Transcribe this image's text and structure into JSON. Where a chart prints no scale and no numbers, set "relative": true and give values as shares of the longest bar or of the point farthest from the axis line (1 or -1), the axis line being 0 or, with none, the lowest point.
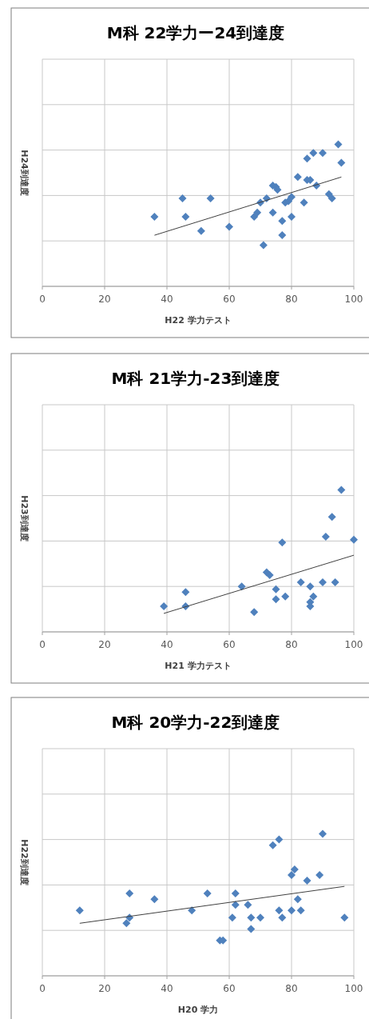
{
  "chart_data": [
    {
      "type": "scatter",
      "title": "M科 22学力ー24到達度",
      "xlabel": "H22 学力テスト",
      "ylabel": "H24到達度",
      "relative": true,
      "xlim": [
        0,
        100
      ],
      "xticks": [
        0,
        20,
        40,
        60,
        80,
        100
      ],
      "grid": true,
      "marker": "diamond",
      "series": [
        {
          "color": "#4f81bd",
          "x": [
            36,
            45,
            46,
            51,
            54,
            60,
            68,
            69,
            70,
            71,
            72,
            74,
            75,
            75.5,
            74,
            77,
            77,
            78,
            79,
            80,
            80,
            82,
            84,
            85,
            85,
            86,
            87,
            88,
            90,
            92,
            93,
            95,
            96
          ],
          "values": [
            0.49,
            0.62,
            0.49,
            0.39,
            0.62,
            0.42,
            0.49,
            0.52,
            0.59,
            0.29,
            0.62,
            0.71,
            0.7,
            0.68,
            0.52,
            0.46,
            0.36,
            0.59,
            0.6,
            0.63,
            0.49,
            0.77,
            0.59,
            0.9,
            0.75,
            0.75,
            0.94,
            0.71,
            0.94,
            0.65,
            0.62,
            1,
            0.87
          ]
        },
        {
          "type": "line",
          "color": "#404040",
          "marker": "none",
          "x": [
            36,
            96
          ],
          "values": [
            0.36,
            0.77
          ]
        }
      ]
    },
    {
      "type": "scatter",
      "title": "M科 21学力-23到達度",
      "xlabel": "H21 学力テスト",
      "ylabel": "H23到達度",
      "relative": true,
      "xlim": [
        0,
        100
      ],
      "xticks": [
        0,
        20,
        40,
        60,
        80,
        100
      ],
      "grid": true,
      "marker": "diamond",
      "series": [
        {
          "color": "#4f81bd",
          "x": [
            39,
            46,
            46,
            64,
            68,
            72,
            73,
            75,
            75,
            77,
            78,
            83,
            86,
            86,
            86,
            87,
            90,
            91,
            93,
            94,
            96,
            100
          ],
          "values": [
            0.18,
            0.28,
            0.18,
            0.32,
            0.14,
            0.42,
            0.4,
            0.3,
            0.23,
            0.63,
            0.25,
            0.35,
            0.32,
            0.21,
            0.18,
            0.25,
            0.35,
            0.67,
            0.81,
            0.35,
            1,
            0.65
          ]
        },
        {
          "type": "line",
          "color": "#404040",
          "marker": "none",
          "x": [
            39,
            100
          ],
          "values": [
            0.13,
            0.54
          ]
        }
      ]
    },
    {
      "type": "scatter",
      "title": "M科 20学力-22到達度",
      "xlabel": "H20 学力",
      "ylabel": "H22到達度",
      "relative": true,
      "xlim": [
        0,
        100
      ],
      "xticks": [
        0,
        20,
        40,
        60,
        80,
        100
      ],
      "grid": true,
      "marker": "diamond",
      "series": [
        {
          "color": "#4f81bd",
          "x": [
            12,
            27,
            28,
            28,
            36,
            48,
            53,
            57,
            58,
            61,
            62,
            62,
            66,
            67,
            67,
            70,
            74,
            76,
            76,
            77,
            80,
            80,
            81,
            82,
            83,
            85,
            89,
            90,
            97
          ],
          "values": [
            0.46,
            0.37,
            0.41,
            0.58,
            0.54,
            0.46,
            0.58,
            0.25,
            0.25,
            0.41,
            0.58,
            0.5,
            0.5,
            0.41,
            0.33,
            0.41,
            0.92,
            0.96,
            0.46,
            0.41,
            0.71,
            0.46,
            0.75,
            0.54,
            0.46,
            0.67,
            0.71,
            1,
            0.41
          ]
        },
        {
          "type": "line",
          "color": "#404040",
          "marker": "none",
          "x": [
            12,
            97
          ],
          "values": [
            0.37,
            0.63
          ]
        }
      ]
    }
  ]
}
